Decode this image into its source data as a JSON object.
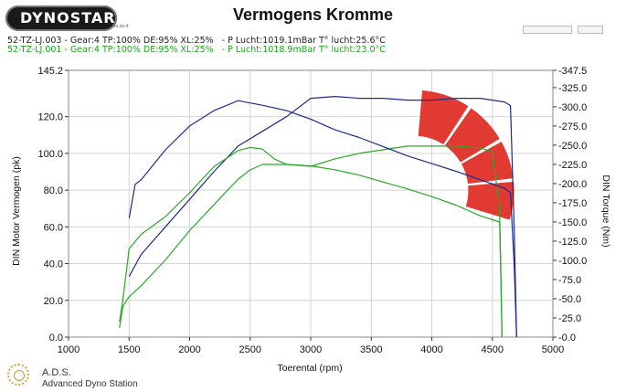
{
  "header": {
    "logo_text": "DYNOSTAR",
    "logo_small": "ru.so.rt",
    "title": "Vermogens Kromme"
  },
  "runs": [
    {
      "label": "52-TZ-LJ.003 - Gear:4 TP:100% DE:95% XL:25%   - P Lucht:1019.1mBar T° lucht:25.6°C",
      "color": "#222222"
    },
    {
      "label": "52-TZ-LJ.001 - Gear:4 TP:100% DE:95% XL:25%   - P Lucht:1018.9mBar T° lucht:23.0°C",
      "color": "#1aa61a"
    }
  ],
  "footer": {
    "brand": "A.D.S.",
    "subtitle": "Advanced Dyno Station"
  },
  "colors": {
    "run_blue": "#1c2b8c",
    "run_green": "#2aa82a",
    "watermark_red": "#e03a33"
  },
  "chart_data": {
    "type": "line",
    "xlabel": "Toerental (rpm)",
    "ylabel": "DIN Motor Vermogen (pk)",
    "ylabel_right": "DIN Torque (Nm)",
    "xlim": [
      1000,
      5000
    ],
    "ylim": [
      0,
      145.2
    ],
    "ylim_right": [
      0,
      347.5
    ],
    "x_ticks": [
      "1000",
      "1500",
      "2000",
      "2500",
      "3000",
      "3500",
      "4000",
      "4500",
      "5000"
    ],
    "y_ticks": [
      "0.0",
      "20.0",
      "40.0",
      "60.0",
      "80.0",
      "100.0",
      "120.0",
      "145.2"
    ],
    "y_ticks_right": [
      "-0.0",
      "-25.0",
      "-50.0",
      "-75.0",
      "-100.0",
      "-125.0",
      "-150.0",
      "-175.0",
      "-200.0",
      "-225.0",
      "-250.0",
      "-275.0",
      "-300.0",
      "-325.0",
      "-347.5"
    ],
    "grid": true,
    "series": [
      {
        "axis": "left",
        "color": "#1c2b8c",
        "x": [
          1500,
          1600,
          1800,
          2000,
          2200,
          2400,
          2600,
          2800,
          3000,
          3200,
          3400,
          3600,
          3800,
          4000,
          4200,
          4400,
          4600,
          4650,
          4680,
          4700
        ],
        "y": [
          33,
          45,
          60,
          75,
          90,
          104,
          112,
          120,
          130,
          131,
          130,
          130,
          129,
          129,
          130,
          130,
          128,
          126,
          60,
          0
        ]
      },
      {
        "axis": "left",
        "color": "#2aa82a",
        "x": [
          1420,
          1450,
          1500,
          1600,
          1800,
          2000,
          2200,
          2400,
          2500,
          2600,
          2700,
          2800,
          3000,
          3200,
          3400,
          3600,
          3800,
          4000,
          4200,
          4400,
          4500,
          4560,
          4580
        ],
        "y": [
          5,
          17,
          22,
          28,
          42,
          58,
          72,
          86,
          91,
          94,
          94,
          94,
          93,
          97,
          100,
          102,
          104,
          104,
          104,
          103,
          101,
          70,
          0
        ]
      },
      {
        "axis": "right",
        "color": "#1c2b8c",
        "x": [
          1500,
          1550,
          1600,
          1800,
          2000,
          2200,
          2400,
          2600,
          2800,
          3000,
          3200,
          3400,
          3600,
          3800,
          4000,
          4200,
          4400,
          4600,
          4650,
          4680,
          4700
        ],
        "y": [
          155,
          199,
          205,
          244,
          275,
          295,
          308,
          302,
          295,
          284,
          270,
          260,
          248,
          236,
          226,
          216,
          205,
          194,
          188,
          95,
          0
        ]
      },
      {
        "axis": "right",
        "color": "#2aa82a",
        "x": [
          1420,
          1450,
          1500,
          1600,
          1800,
          2000,
          2200,
          2400,
          2500,
          2600,
          2700,
          2800,
          3000,
          3200,
          3400,
          3600,
          3800,
          4000,
          4200,
          4400,
          4560,
          4580
        ],
        "y": [
          20,
          50,
          115,
          134,
          157,
          188,
          222,
          243,
          247,
          245,
          232,
          225,
          223,
          218,
          211,
          202,
          193,
          183,
          172,
          158,
          150,
          0
        ]
      }
    ]
  }
}
